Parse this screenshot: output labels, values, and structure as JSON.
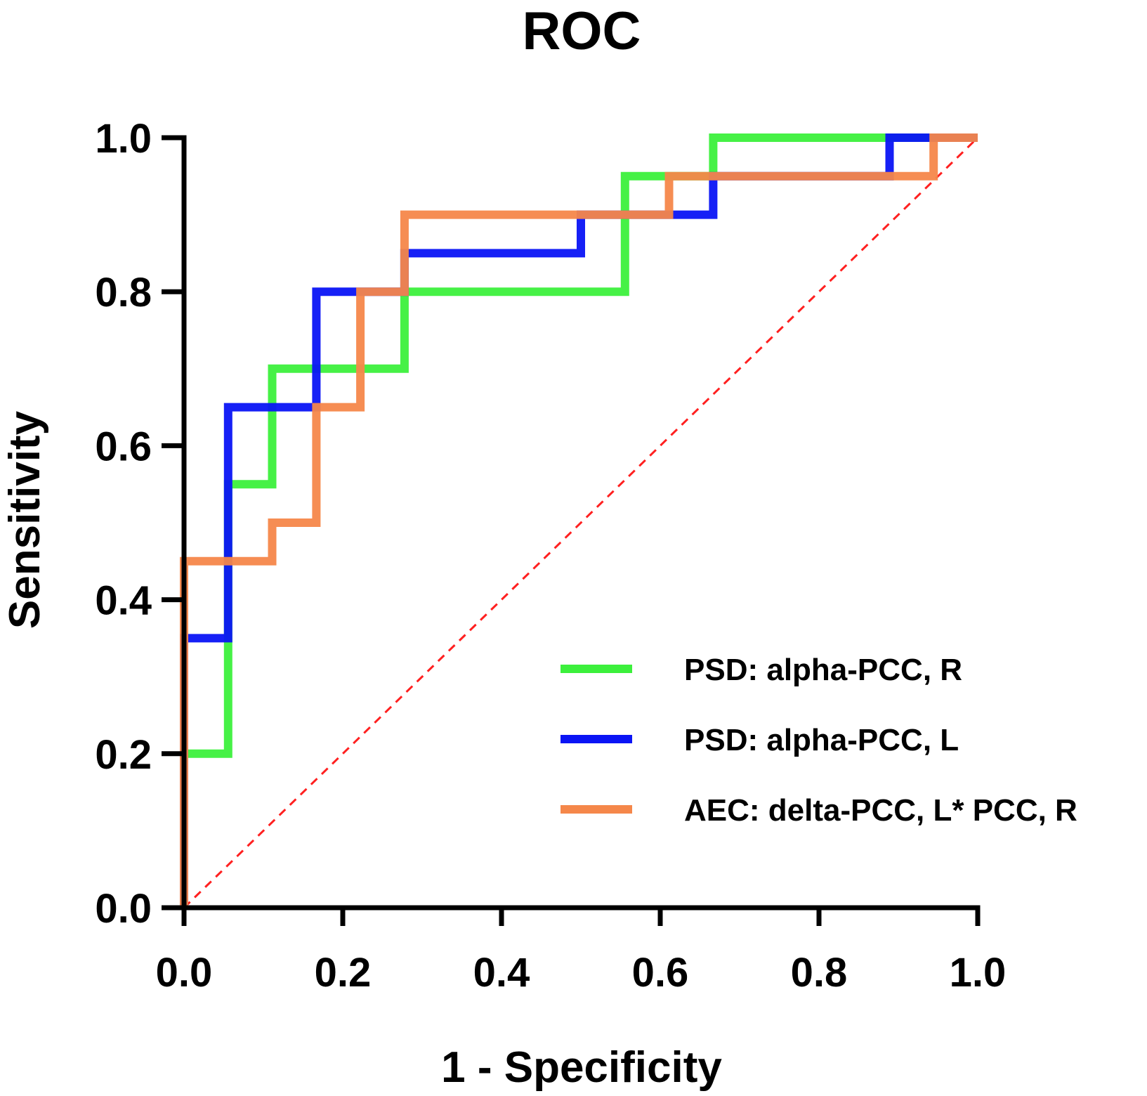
{
  "chart_data": {
    "type": "line",
    "title": "ROC",
    "xlabel": "1 - Specificity",
    "ylabel": "Sensitivity",
    "xlim": [
      0,
      1
    ],
    "ylim": [
      0,
      1
    ],
    "xticks": [
      "0.0",
      "0.2",
      "0.4",
      "0.6",
      "0.8",
      "1.0"
    ],
    "yticks": [
      "0.0",
      "0.2",
      "0.4",
      "0.6",
      "0.8",
      "1.0"
    ],
    "grid": false,
    "legend_position": "bottom-right",
    "reference_line": {
      "name": "chance",
      "color": "#ff2020",
      "x": [
        0,
        1
      ],
      "y": [
        0,
        1
      ]
    },
    "series": [
      {
        "name": "PSD: alpha-PCC, R",
        "color": "#3cf03c",
        "x": [
          0,
          0,
          0.0556,
          0.0556,
          0.1111,
          0.1111,
          0.2778,
          0.2778,
          0.5556,
          0.5556,
          0.6667,
          0.6667,
          1.0
        ],
        "y": [
          0,
          0.2,
          0.2,
          0.55,
          0.55,
          0.7,
          0.7,
          0.8,
          0.8,
          0.95,
          0.95,
          1.0,
          1.0
        ]
      },
      {
        "name": "PSD: alpha-PCC, L",
        "color": "#0a14f5",
        "x": [
          0,
          0,
          0.0556,
          0.0556,
          0.1667,
          0.1667,
          0.2778,
          0.2778,
          0.5,
          0.5,
          0.6111,
          0.6111,
          0.6667,
          0.6667,
          0.8889,
          0.8889,
          1.0
        ],
        "y": [
          0,
          0.35,
          0.35,
          0.65,
          0.65,
          0.8,
          0.8,
          0.85,
          0.85,
          0.9,
          0.9,
          0.9,
          0.9,
          0.95,
          0.95,
          1.0,
          1.0
        ]
      },
      {
        "name": "AEC: delta-PCC, L* PCC, R",
        "color": "#f5874a",
        "x": [
          0,
          0,
          0.1111,
          0.1111,
          0.1667,
          0.1667,
          0.2222,
          0.2222,
          0.2778,
          0.2778,
          0.6111,
          0.6111,
          0.9444,
          0.9444,
          1.0
        ],
        "y": [
          0,
          0.45,
          0.45,
          0.5,
          0.5,
          0.65,
          0.65,
          0.8,
          0.8,
          0.9,
          0.9,
          0.95,
          0.95,
          1.0,
          1.0
        ]
      }
    ]
  }
}
